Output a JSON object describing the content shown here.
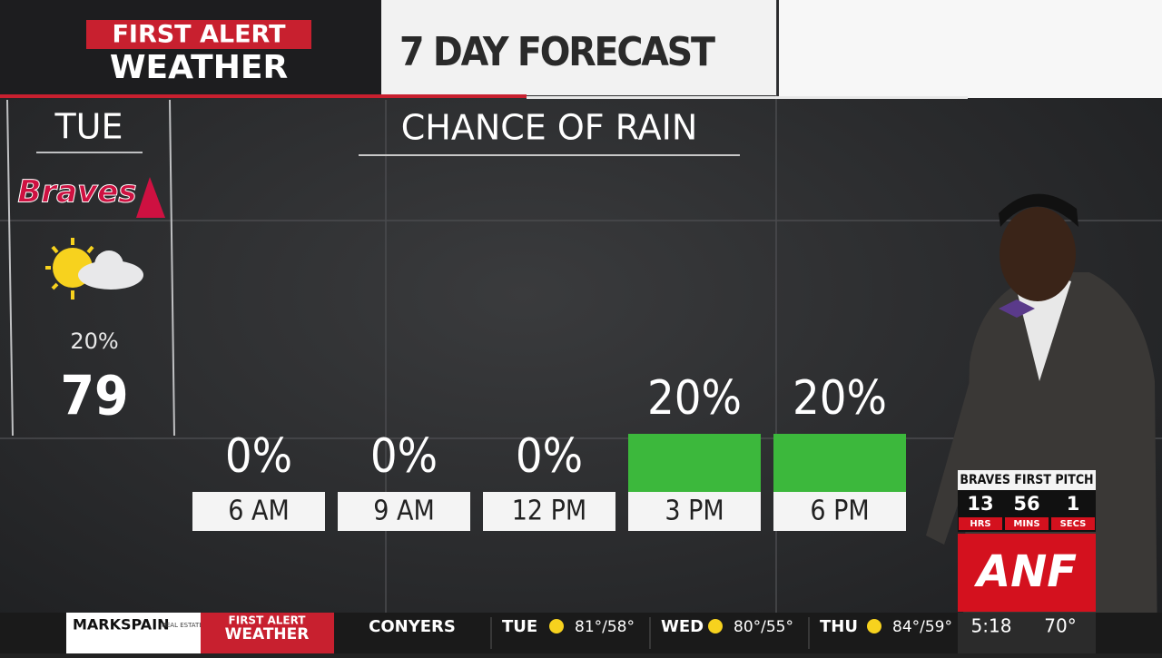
{
  "header": {
    "brand_top": "FIRST ALERT",
    "brand_bottom": "WEATHER",
    "title": "7 DAY FORECAST"
  },
  "day_panel": {
    "day": "TUE",
    "team": "Braves",
    "precip": "20%",
    "temp": "79"
  },
  "chart_data": {
    "type": "bar",
    "title": "CHANCE OF RAIN",
    "categories": [
      "6 AM",
      "9 AM",
      "12 PM",
      "3 PM",
      "6 PM"
    ],
    "values": [
      0,
      0,
      0,
      20,
      20
    ],
    "value_labels": [
      "0%",
      "0%",
      "0%",
      "20%",
      "20%"
    ],
    "color": "#3cb83c"
  },
  "countdown": {
    "title": "BRAVES FIRST PITCH",
    "units": [
      {
        "value": "13",
        "label": "HRS"
      },
      {
        "value": "56",
        "label": "MINS"
      },
      {
        "value": "1",
        "label": "SECS"
      }
    ]
  },
  "station": "ANF",
  "ticker": {
    "sponsor": "MARKSPAIN",
    "sponsor_sub": "REAL ESTATE",
    "brand_top": "FIRST ALERT",
    "brand_bottom": "WEATHER",
    "city": "CONYERS",
    "days": [
      {
        "day": "TUE",
        "temps": "81°/58°"
      },
      {
        "day": "WED",
        "temps": "80°/55°"
      },
      {
        "day": "THU",
        "temps": "84°/59°"
      }
    ],
    "time": "5:18",
    "current": "70°"
  }
}
